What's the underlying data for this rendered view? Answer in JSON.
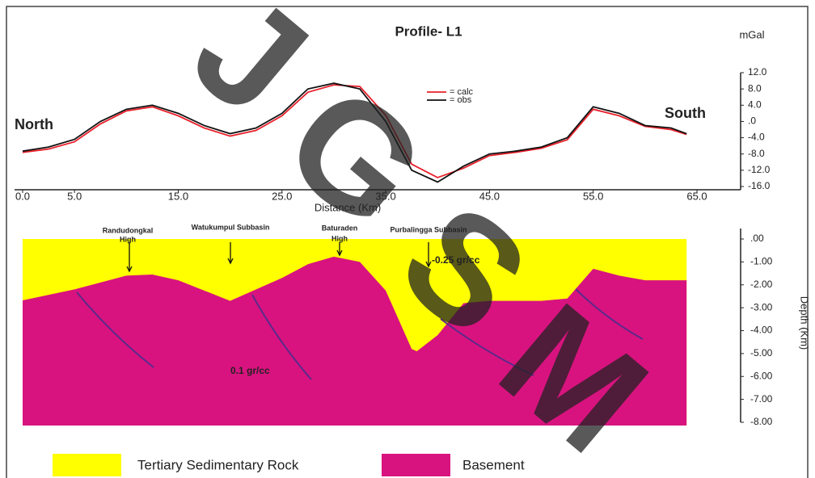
{
  "watermark": [
    "J",
    "G",
    "S",
    "M"
  ],
  "chart_data": [
    {
      "type": "line",
      "title": "Profile- L1",
      "y_unit": "mGal",
      "x_label": "Distance (Km)",
      "annotations": [
        "North",
        "South"
      ],
      "x": [
        0,
        2.5,
        5,
        7.5,
        10,
        12.5,
        15,
        17.5,
        20,
        22.5,
        25,
        27.5,
        30,
        32.5,
        35,
        37.5,
        40,
        42.5,
        45,
        47.5,
        50,
        52.5,
        55,
        57.5,
        60,
        62.5,
        64
      ],
      "series": [
        {
          "name": "= calc",
          "color": "#e8202a",
          "values": [
            -7.6,
            -6.8,
            -5,
            -0.6,
            2.6,
            3.6,
            1.4,
            -1.6,
            -3.6,
            -2.2,
            1.4,
            7.2,
            9,
            8.6,
            1.5,
            -10.5,
            -13.8,
            -11.5,
            -8.4,
            -7.6,
            -6.6,
            -4.5,
            3,
            1.4,
            -1.2,
            -2,
            -3.2
          ]
        },
        {
          "name": "= obs",
          "color": "#111111",
          "values": [
            -7.3,
            -6.3,
            -4.4,
            0,
            3,
            4,
            2,
            -1,
            -3,
            -1.6,
            2,
            8,
            9.4,
            8,
            0,
            -12,
            -14.9,
            -11,
            -8,
            -7.3,
            -6.3,
            -4,
            3.6,
            2,
            -1,
            -1.6,
            -3
          ]
        }
      ],
      "xlim": [
        0,
        65
      ],
      "xticks": [
        {
          "value": 0,
          "label": "0.0"
        },
        {
          "value": 5,
          "label": "5.0"
        },
        {
          "value": 15,
          "label": "15.0"
        },
        {
          "value": 25,
          "label": "25.0"
        },
        {
          "value": 35,
          "label": "35.0"
        },
        {
          "value": 45,
          "label": "45.0"
        },
        {
          "value": 55,
          "label": "55.0"
        },
        {
          "value": 65,
          "label": "65.0"
        }
      ],
      "ylim": [
        -16,
        12
      ],
      "yticks": [
        {
          "value": 12,
          "label": "12.0"
        },
        {
          "value": 8,
          "label": "8.0"
        },
        {
          "value": 4,
          "label": "4.0"
        },
        {
          "value": 0,
          "label": ".0"
        },
        {
          "value": -4,
          "label": "-4.0"
        },
        {
          "value": -8,
          "label": "-8.0"
        },
        {
          "value": -12,
          "label": "-12.0"
        },
        {
          "value": -16,
          "label": "-16.0"
        }
      ]
    },
    {
      "type": "area",
      "y_label": "Depth (Km)",
      "annotations": [
        "Randudongkal",
        "High",
        "Watukumpul Subbasin",
        "Baturaden",
        "High",
        "Purbalingga Subbasin",
        "-0.25 gr/cc",
        "0.1 gr/cc"
      ],
      "x": [
        0,
        5,
        10,
        12.5,
        15,
        20,
        25,
        27.5,
        30,
        32.5,
        35,
        37.5,
        38,
        40,
        42.5,
        45,
        50,
        52.5,
        55,
        57.5,
        60,
        64
      ],
      "values": [
        -2.68,
        -2.2,
        -1.6,
        -1.55,
        -1.8,
        -2.7,
        -1.7,
        -1.1,
        -0.77,
        -1.0,
        -2.25,
        -4.8,
        -4.9,
        -4.2,
        -2.8,
        -2.7,
        -2.7,
        -2.6,
        -1.3,
        -1.6,
        -1.8,
        -1.8
      ],
      "legend": [
        {
          "name": "Tertiary Sedimentary Rock",
          "color": "#ffff00"
        },
        {
          "name": "Basement",
          "color": "#d8137f"
        }
      ],
      "xlim": [
        0,
        65
      ],
      "ylim": [
        -8,
        0
      ],
      "yticks": [
        {
          "value": 0,
          "label": ".00"
        },
        {
          "value": -1,
          "label": "-1.00"
        },
        {
          "value": -2,
          "label": "-2.00"
        },
        {
          "value": -3,
          "label": "-3.00"
        },
        {
          "value": -4,
          "label": "-4.00"
        },
        {
          "value": -5,
          "label": "-5.00"
        },
        {
          "value": -6,
          "label": "-6.00"
        },
        {
          "value": -7,
          "label": "-7.00"
        },
        {
          "value": -8,
          "label": "-8.00"
        }
      ]
    }
  ]
}
